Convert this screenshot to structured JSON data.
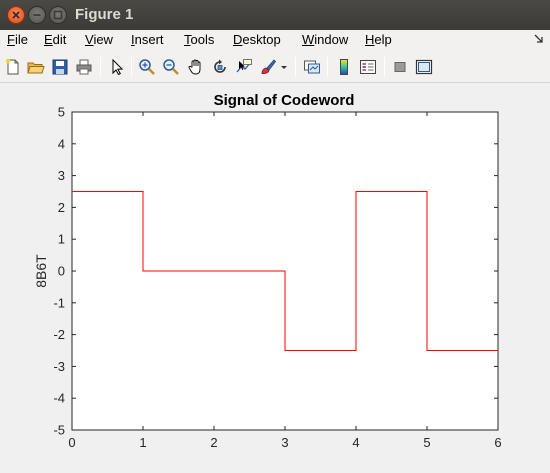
{
  "window": {
    "title": "Figure 1",
    "close_icon": "close-icon",
    "minimize_icon": "minimize-icon",
    "maximize_icon": "maximize-icon"
  },
  "menubar": {
    "items": [
      "File",
      "Edit",
      "View",
      "Insert",
      "Tools",
      "Desktop",
      "Window",
      "Help"
    ]
  },
  "toolbar": {
    "icons": [
      "new-figure-icon",
      "open-file-icon",
      "save-icon",
      "print-icon",
      "pointer-icon",
      "zoom-in-icon",
      "zoom-out-icon",
      "pan-icon",
      "rotate-3d-icon",
      "data-cursor-icon",
      "brush-icon",
      "brush-dropdown-icon",
      "link-plot-icon",
      "colorbar-icon",
      "legend-icon",
      "hide-plot-tools-icon",
      "show-plot-tools-icon"
    ]
  },
  "chart_data": {
    "type": "line",
    "title": "Signal of Codeword",
    "xlabel": "",
    "ylabel": "8B6T",
    "xlim": [
      0,
      6
    ],
    "ylim": [
      -5,
      5
    ],
    "xticks": [
      0,
      1,
      2,
      3,
      4,
      5,
      6
    ],
    "yticks": [
      -5,
      -4,
      -3,
      -2,
      -1,
      0,
      1,
      2,
      3,
      4,
      5
    ],
    "grid": false,
    "series": [
      {
        "color": "#ff0000",
        "step": true,
        "x": [
          0,
          1,
          1,
          3,
          3,
          4,
          4,
          5,
          5,
          6
        ],
        "y": [
          2.5,
          2.5,
          0,
          0,
          -2.5,
          -2.5,
          2.5,
          2.5,
          -2.5,
          -2.5
        ]
      }
    ]
  }
}
